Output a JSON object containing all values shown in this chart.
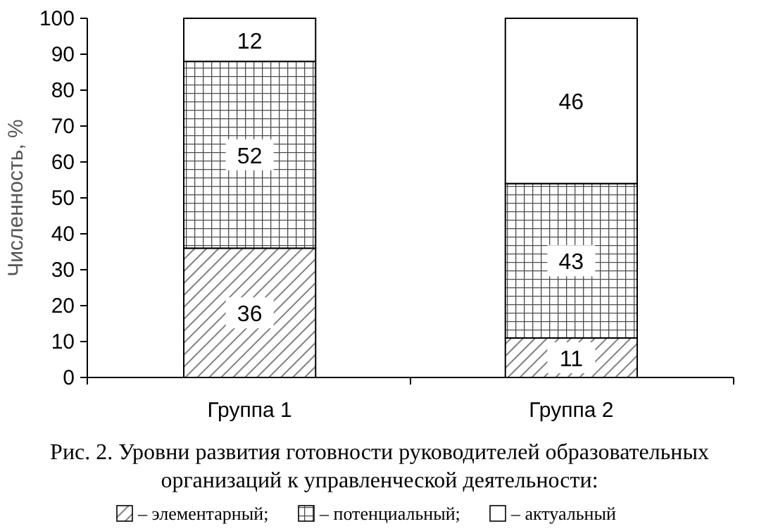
{
  "chart_data": {
    "type": "bar",
    "stacked": true,
    "title": "Рис. 2. Уровни развития готовности руководителей образовательных\nорганизаций к управленческой деятельности:",
    "ylabel": "Численность, %",
    "categories": [
      "Группа 1",
      "Группа 2"
    ],
    "series": [
      {
        "name": "– элементарный;",
        "color": "#000000",
        "values": [
          36,
          11
        ]
      },
      {
        "name": "– потенциальный;",
        "color": "#000000",
        "values": [
          52,
          43
        ]
      },
      {
        "name": "– актуальный",
        "color": "#ffffff",
        "values": [
          12,
          46
        ]
      }
    ],
    "ylim": [
      0,
      100
    ],
    "yticks": [
      0,
      10,
      20,
      30,
      40,
      50,
      60,
      70,
      80,
      90,
      100
    ],
    "data_labels": true,
    "legend": "bottom",
    "grid": false
  }
}
